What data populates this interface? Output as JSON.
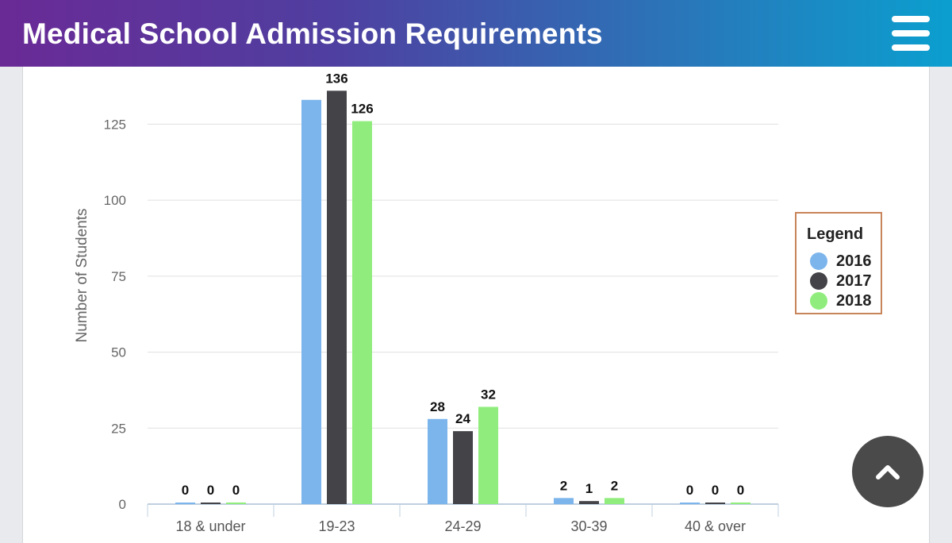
{
  "header": {
    "title": "Medical School Admission Requirements",
    "menu_icon": "hamburger-menu-icon"
  },
  "legend": {
    "title": "Legend",
    "items": [
      {
        "label": "2016",
        "color": "#7cb5ec"
      },
      {
        "label": "2017",
        "color": "#434348"
      },
      {
        "label": "2018",
        "color": "#90ed7d"
      }
    ]
  },
  "scroll_top": {
    "icon": "chevron-up-icon"
  },
  "chart_data": {
    "type": "bar",
    "categories": [
      "18 & under",
      "19-23",
      "24-29",
      "30-39",
      "40 & over"
    ],
    "series": [
      {
        "name": "2016",
        "color": "#7cb5ec",
        "values": [
          0,
          133,
          28,
          2,
          0
        ],
        "labels": [
          "0",
          "",
          "28",
          "2",
          "0"
        ]
      },
      {
        "name": "2017",
        "color": "#434348",
        "values": [
          0,
          136,
          24,
          1,
          0
        ],
        "labels": [
          "0",
          "136",
          "24",
          "1",
          "0"
        ]
      },
      {
        "name": "2018",
        "color": "#90ed7d",
        "values": [
          0,
          126,
          32,
          2,
          0
        ],
        "labels": [
          "0",
          "126",
          "32",
          "2",
          "0"
        ]
      }
    ],
    "ylabel": "Number of Students",
    "xlabel": "",
    "ylim": [
      0,
      140
    ],
    "yticks": [
      0,
      25,
      50,
      75,
      100,
      125
    ],
    "grid": true,
    "legend_position": "right"
  }
}
